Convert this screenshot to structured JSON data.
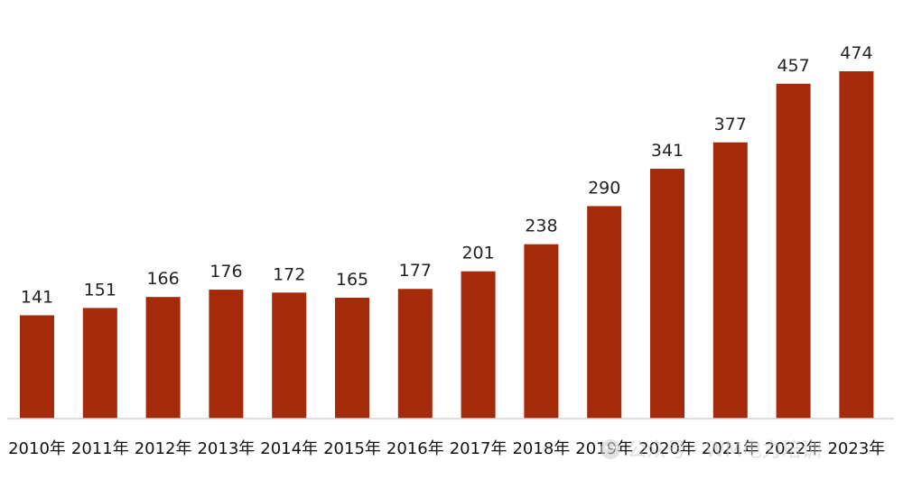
{
  "chart_data": {
    "type": "bar",
    "categories": [
      "2010年",
      "2011年",
      "2012年",
      "2013年",
      "2014年",
      "2015年",
      "2016年",
      "2017年",
      "2018年",
      "2019年",
      "2020年",
      "2021年",
      "2022年",
      "2023年"
    ],
    "values": [
      141,
      151,
      166,
      176,
      172,
      165,
      177,
      201,
      238,
      290,
      341,
      377,
      457,
      474
    ],
    "data_labels": [
      "141",
      "151",
      "166",
      "176",
      "172",
      "165",
      "177",
      "201",
      "238",
      "290",
      "341",
      "377",
      "457",
      "474"
    ],
    "ylim": [
      0,
      474
    ],
    "grid": false,
    "bar_color": "#A52A0A",
    "baseline_color": "#d0d0d0"
  },
  "watermark": {
    "text": "公众号 · WM电力培训",
    "icon": "wechat-icon"
  }
}
